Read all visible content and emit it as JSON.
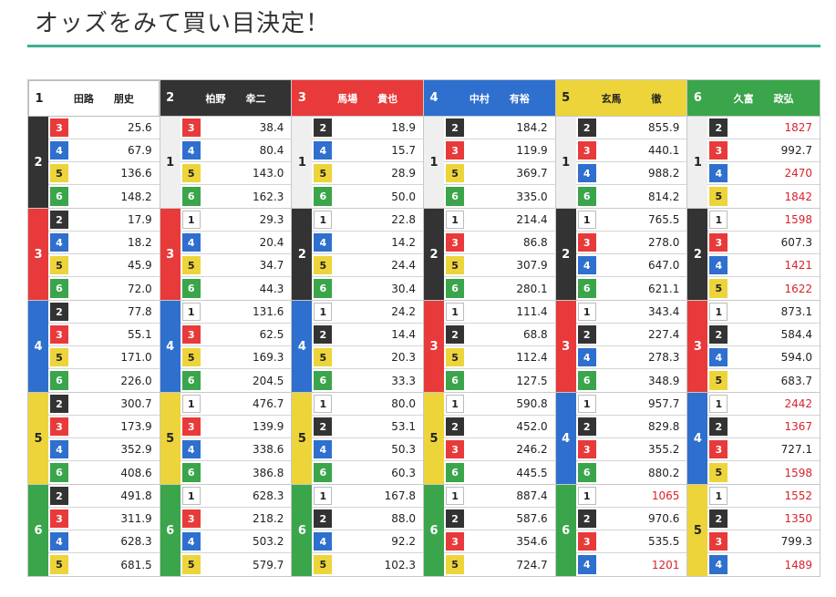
{
  "title": "オッズをみて買い目決定！",
  "colors": {
    "1": "#ffffff",
    "2": "#333333",
    "3": "#e83a3a",
    "4": "#2f6fce",
    "5": "#ecd43a",
    "6": "#3aa54a",
    "accent_rule": "#3bb08f",
    "high_odds": "#d8232a"
  },
  "columns": [
    {
      "num": "1",
      "name": "田路　　朋史",
      "groups": [
        {
          "second": "2",
          "rows": [
            {
              "third": "3",
              "odds": "25.6"
            },
            {
              "third": "4",
              "odds": "67.9"
            },
            {
              "third": "5",
              "odds": "136.6"
            },
            {
              "third": "6",
              "odds": "148.2"
            }
          ]
        },
        {
          "second": "3",
          "rows": [
            {
              "third": "2",
              "odds": "17.9"
            },
            {
              "third": "4",
              "odds": "18.2"
            },
            {
              "third": "5",
              "odds": "45.9"
            },
            {
              "third": "6",
              "odds": "72.0"
            }
          ]
        },
        {
          "second": "4",
          "rows": [
            {
              "third": "2",
              "odds": "77.8"
            },
            {
              "third": "3",
              "odds": "55.1"
            },
            {
              "third": "5",
              "odds": "171.0"
            },
            {
              "third": "6",
              "odds": "226.0"
            }
          ]
        },
        {
          "second": "5",
          "rows": [
            {
              "third": "2",
              "odds": "300.7"
            },
            {
              "third": "3",
              "odds": "173.9"
            },
            {
              "third": "4",
              "odds": "352.9"
            },
            {
              "third": "6",
              "odds": "408.6"
            }
          ]
        },
        {
          "second": "6",
          "rows": [
            {
              "third": "2",
              "odds": "491.8"
            },
            {
              "third": "3",
              "odds": "311.9"
            },
            {
              "third": "4",
              "odds": "628.3"
            },
            {
              "third": "5",
              "odds": "681.5"
            }
          ]
        }
      ]
    },
    {
      "num": "2",
      "name": "柏野　　幸二",
      "groups": [
        {
          "second": "1",
          "rows": [
            {
              "third": "3",
              "odds": "38.4"
            },
            {
              "third": "4",
              "odds": "80.4"
            },
            {
              "third": "5",
              "odds": "143.0"
            },
            {
              "third": "6",
              "odds": "162.3"
            }
          ]
        },
        {
          "second": "3",
          "rows": [
            {
              "third": "1",
              "odds": "29.3"
            },
            {
              "third": "4",
              "odds": "20.4"
            },
            {
              "third": "5",
              "odds": "34.7"
            },
            {
              "third": "6",
              "odds": "44.3"
            }
          ]
        },
        {
          "second": "4",
          "rows": [
            {
              "third": "1",
              "odds": "131.6"
            },
            {
              "third": "3",
              "odds": "62.5"
            },
            {
              "third": "5",
              "odds": "169.3"
            },
            {
              "third": "6",
              "odds": "204.5"
            }
          ]
        },
        {
          "second": "5",
          "rows": [
            {
              "third": "1",
              "odds": "476.7"
            },
            {
              "third": "3",
              "odds": "139.9"
            },
            {
              "third": "4",
              "odds": "338.6"
            },
            {
              "third": "6",
              "odds": "386.8"
            }
          ]
        },
        {
          "second": "6",
          "rows": [
            {
              "third": "1",
              "odds": "628.3"
            },
            {
              "third": "3",
              "odds": "218.2"
            },
            {
              "third": "4",
              "odds": "503.2"
            },
            {
              "third": "5",
              "odds": "579.7"
            }
          ]
        }
      ]
    },
    {
      "num": "3",
      "name": "馬場　　貴也",
      "groups": [
        {
          "second": "1",
          "rows": [
            {
              "third": "2",
              "odds": "18.9"
            },
            {
              "third": "4",
              "odds": "15.7"
            },
            {
              "third": "5",
              "odds": "28.9"
            },
            {
              "third": "6",
              "odds": "50.0"
            }
          ]
        },
        {
          "second": "2",
          "rows": [
            {
              "third": "1",
              "odds": "22.8"
            },
            {
              "third": "4",
              "odds": "14.2"
            },
            {
              "third": "5",
              "odds": "24.4"
            },
            {
              "third": "6",
              "odds": "30.4"
            }
          ]
        },
        {
          "second": "4",
          "rows": [
            {
              "third": "1",
              "odds": "24.2"
            },
            {
              "third": "2",
              "odds": "14.4"
            },
            {
              "third": "5",
              "odds": "20.3"
            },
            {
              "third": "6",
              "odds": "33.3"
            }
          ]
        },
        {
          "second": "5",
          "rows": [
            {
              "third": "1",
              "odds": "80.0"
            },
            {
              "third": "2",
              "odds": "53.1"
            },
            {
              "third": "4",
              "odds": "50.3"
            },
            {
              "third": "6",
              "odds": "60.3"
            }
          ]
        },
        {
          "second": "6",
          "rows": [
            {
              "third": "1",
              "odds": "167.8"
            },
            {
              "third": "2",
              "odds": "88.0"
            },
            {
              "third": "4",
              "odds": "92.2"
            },
            {
              "third": "5",
              "odds": "102.3"
            }
          ]
        }
      ]
    },
    {
      "num": "4",
      "name": "中村　　有裕",
      "groups": [
        {
          "second": "1",
          "rows": [
            {
              "third": "2",
              "odds": "184.2"
            },
            {
              "third": "3",
              "odds": "119.9"
            },
            {
              "third": "5",
              "odds": "369.7"
            },
            {
              "third": "6",
              "odds": "335.0"
            }
          ]
        },
        {
          "second": "2",
          "rows": [
            {
              "third": "1",
              "odds": "214.4"
            },
            {
              "third": "3",
              "odds": "86.8"
            },
            {
              "third": "5",
              "odds": "307.9"
            },
            {
              "third": "6",
              "odds": "280.1"
            }
          ]
        },
        {
          "second": "3",
          "rows": [
            {
              "third": "1",
              "odds": "111.4"
            },
            {
              "third": "2",
              "odds": "68.8"
            },
            {
              "third": "5",
              "odds": "112.4"
            },
            {
              "third": "6",
              "odds": "127.5"
            }
          ]
        },
        {
          "second": "5",
          "rows": [
            {
              "third": "1",
              "odds": "590.8"
            },
            {
              "third": "2",
              "odds": "452.0"
            },
            {
              "third": "3",
              "odds": "246.2"
            },
            {
              "third": "6",
              "odds": "445.5"
            }
          ]
        },
        {
          "second": "6",
          "rows": [
            {
              "third": "1",
              "odds": "887.4"
            },
            {
              "third": "2",
              "odds": "587.6"
            },
            {
              "third": "3",
              "odds": "354.6"
            },
            {
              "third": "5",
              "odds": "724.7"
            }
          ]
        }
      ]
    },
    {
      "num": "5",
      "name": "玄馬　　　徹",
      "groups": [
        {
          "second": "1",
          "rows": [
            {
              "third": "2",
              "odds": "855.9"
            },
            {
              "third": "3",
              "odds": "440.1"
            },
            {
              "third": "4",
              "odds": "988.2"
            },
            {
              "third": "6",
              "odds": "814.2"
            }
          ]
        },
        {
          "second": "2",
          "rows": [
            {
              "third": "1",
              "odds": "765.5"
            },
            {
              "third": "3",
              "odds": "278.0"
            },
            {
              "third": "4",
              "odds": "647.0"
            },
            {
              "third": "6",
              "odds": "621.1"
            }
          ]
        },
        {
          "second": "3",
          "rows": [
            {
              "third": "1",
              "odds": "343.4"
            },
            {
              "third": "2",
              "odds": "227.4"
            },
            {
              "third": "4",
              "odds": "278.3"
            },
            {
              "third": "6",
              "odds": "348.9"
            }
          ]
        },
        {
          "second": "4",
          "rows": [
            {
              "third": "1",
              "odds": "957.7"
            },
            {
              "third": "2",
              "odds": "829.8"
            },
            {
              "third": "3",
              "odds": "355.2"
            },
            {
              "third": "6",
              "odds": "880.2"
            }
          ]
        },
        {
          "second": "6",
          "rows": [
            {
              "third": "1",
              "odds": "1065",
              "high": true
            },
            {
              "third": "2",
              "odds": "970.6"
            },
            {
              "third": "3",
              "odds": "535.5"
            },
            {
              "third": "4",
              "odds": "1201",
              "high": true
            }
          ]
        }
      ]
    },
    {
      "num": "6",
      "name": "久富　　政弘",
      "groups": [
        {
          "second": "1",
          "rows": [
            {
              "third": "2",
              "odds": "1827",
              "high": true
            },
            {
              "third": "3",
              "odds": "992.7"
            },
            {
              "third": "4",
              "odds": "2470",
              "high": true
            },
            {
              "third": "5",
              "odds": "1842",
              "high": true
            }
          ]
        },
        {
          "second": "2",
          "rows": [
            {
              "third": "1",
              "odds": "1598",
              "high": true
            },
            {
              "third": "3",
              "odds": "607.3"
            },
            {
              "third": "4",
              "odds": "1421",
              "high": true
            },
            {
              "third": "5",
              "odds": "1622",
              "high": true
            }
          ]
        },
        {
          "second": "3",
          "rows": [
            {
              "third": "1",
              "odds": "873.1"
            },
            {
              "third": "2",
              "odds": "584.4"
            },
            {
              "third": "4",
              "odds": "594.0"
            },
            {
              "third": "5",
              "odds": "683.7"
            }
          ]
        },
        {
          "second": "4",
          "rows": [
            {
              "third": "1",
              "odds": "2442",
              "high": true
            },
            {
              "third": "2",
              "odds": "1367",
              "high": true
            },
            {
              "third": "3",
              "odds": "727.1"
            },
            {
              "third": "5",
              "odds": "1598",
              "high": true
            }
          ]
        },
        {
          "second": "5",
          "rows": [
            {
              "third": "1",
              "odds": "1552",
              "high": true
            },
            {
              "third": "2",
              "odds": "1350",
              "high": true
            },
            {
              "third": "3",
              "odds": "799.3"
            },
            {
              "third": "4",
              "odds": "1489",
              "high": true
            }
          ]
        }
      ]
    }
  ]
}
